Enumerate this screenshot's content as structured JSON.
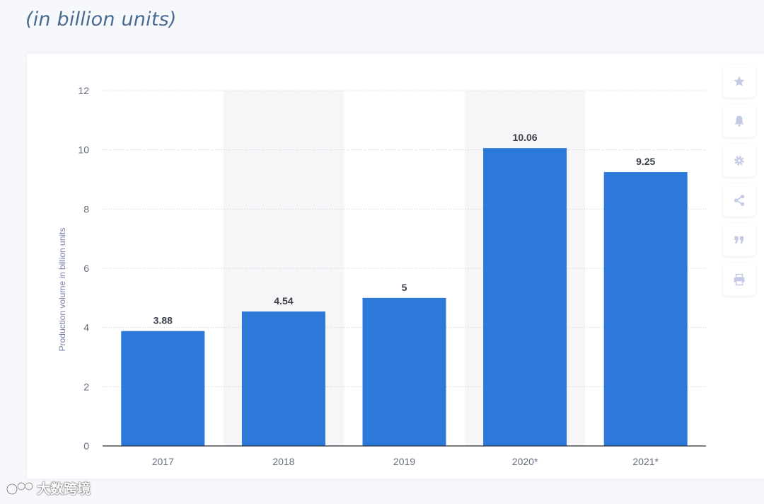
{
  "header": {
    "subtitle": "(in billion units)"
  },
  "toolbar": {
    "buttons": [
      {
        "icon": "star-icon",
        "name": "favorite-button"
      },
      {
        "icon": "bell-icon",
        "name": "notification-button"
      },
      {
        "icon": "gear-icon",
        "name": "settings-button"
      },
      {
        "icon": "share-icon",
        "name": "share-button"
      },
      {
        "icon": "quote-icon",
        "name": "cite-button"
      },
      {
        "icon": "print-icon",
        "name": "print-button"
      }
    ]
  },
  "watermark": {
    "text": "大数跨境"
  },
  "colors": {
    "bar": "#2d79d9",
    "axis_text": "#666e7e",
    "ylabel_text": "#7b83a8",
    "highlight_band": "#f6f6f8",
    "icon": "#c3cbe6"
  },
  "chart_data": {
    "type": "bar",
    "categories": [
      "2017",
      "2018",
      "2019",
      "2020*",
      "2021*"
    ],
    "values": [
      3.88,
      4.54,
      5,
      10.06,
      9.25
    ],
    "value_labels": [
      "3.88",
      "4.54",
      "5",
      "10.06",
      "9.25"
    ],
    "ylabel": "Production volume in billion units",
    "xlabel": "",
    "ylim": [
      0,
      12
    ],
    "yticks": [
      0,
      2,
      4,
      6,
      8,
      10,
      12
    ],
    "grid": true,
    "legend": "none",
    "shaded_categories": [
      "2018",
      "2020*"
    ]
  }
}
